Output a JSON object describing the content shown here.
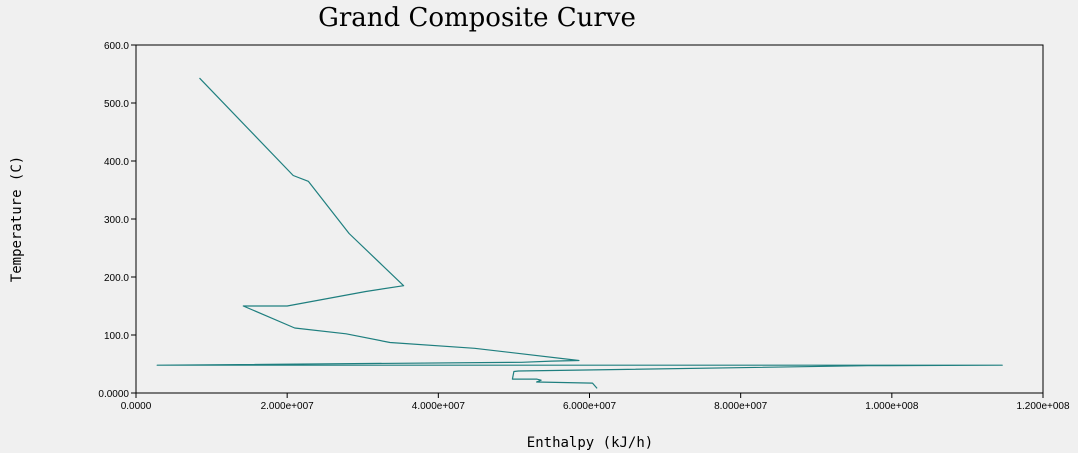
{
  "chart_data": {
    "type": "line",
    "title": "Grand Composite Curve",
    "xlabel": "Enthalpy (kJ/h)",
    "ylabel": "Temperature (C)",
    "xlim": [
      0,
      120000000
    ],
    "ylim": [
      0,
      600
    ],
    "x_ticks": [
      {
        "value": 0,
        "label": "0.0000"
      },
      {
        "value": 20000000,
        "label": "2.000e+007"
      },
      {
        "value": 40000000,
        "label": "4.000e+007"
      },
      {
        "value": 60000000,
        "label": "6.000e+007"
      },
      {
        "value": 80000000,
        "label": "8.000e+007"
      },
      {
        "value": 100000000,
        "label": "1.000e+008"
      },
      {
        "value": 120000000,
        "label": "1.200e+008"
      }
    ],
    "y_ticks": [
      {
        "value": 0,
        "label": "0.0000"
      },
      {
        "value": 100,
        "label": "100.0"
      },
      {
        "value": 200,
        "label": "200.0"
      },
      {
        "value": 300,
        "label": "300.0"
      },
      {
        "value": 400,
        "label": "400.0"
      },
      {
        "value": 500,
        "label": "500.0"
      },
      {
        "value": 600,
        "label": "600.0"
      }
    ],
    "grid": false,
    "series": [
      {
        "color": "#1f7f7f",
        "points": [
          [
            8400000,
            543
          ],
          [
            20800000,
            375
          ],
          [
            22800000,
            365
          ],
          [
            28200000,
            275
          ],
          [
            35400000,
            185
          ],
          [
            30400000,
            175
          ],
          [
            20000000,
            150
          ],
          [
            14200000,
            150
          ],
          [
            21000000,
            112
          ],
          [
            27800000,
            102
          ],
          [
            33600000,
            87
          ],
          [
            44800000,
            77
          ],
          [
            58600000,
            56
          ],
          [
            55000000,
            55
          ],
          [
            51000000,
            53
          ],
          [
            2800000,
            48
          ],
          [
            114600000,
            48
          ],
          [
            96800000,
            47
          ],
          [
            50600000,
            38
          ],
          [
            50000000,
            37
          ],
          [
            49800000,
            24
          ],
          [
            53000000,
            24
          ],
          [
            53600000,
            22
          ],
          [
            53000000,
            19
          ],
          [
            60400000,
            17
          ],
          [
            61000000,
            8
          ]
        ]
      }
    ]
  }
}
